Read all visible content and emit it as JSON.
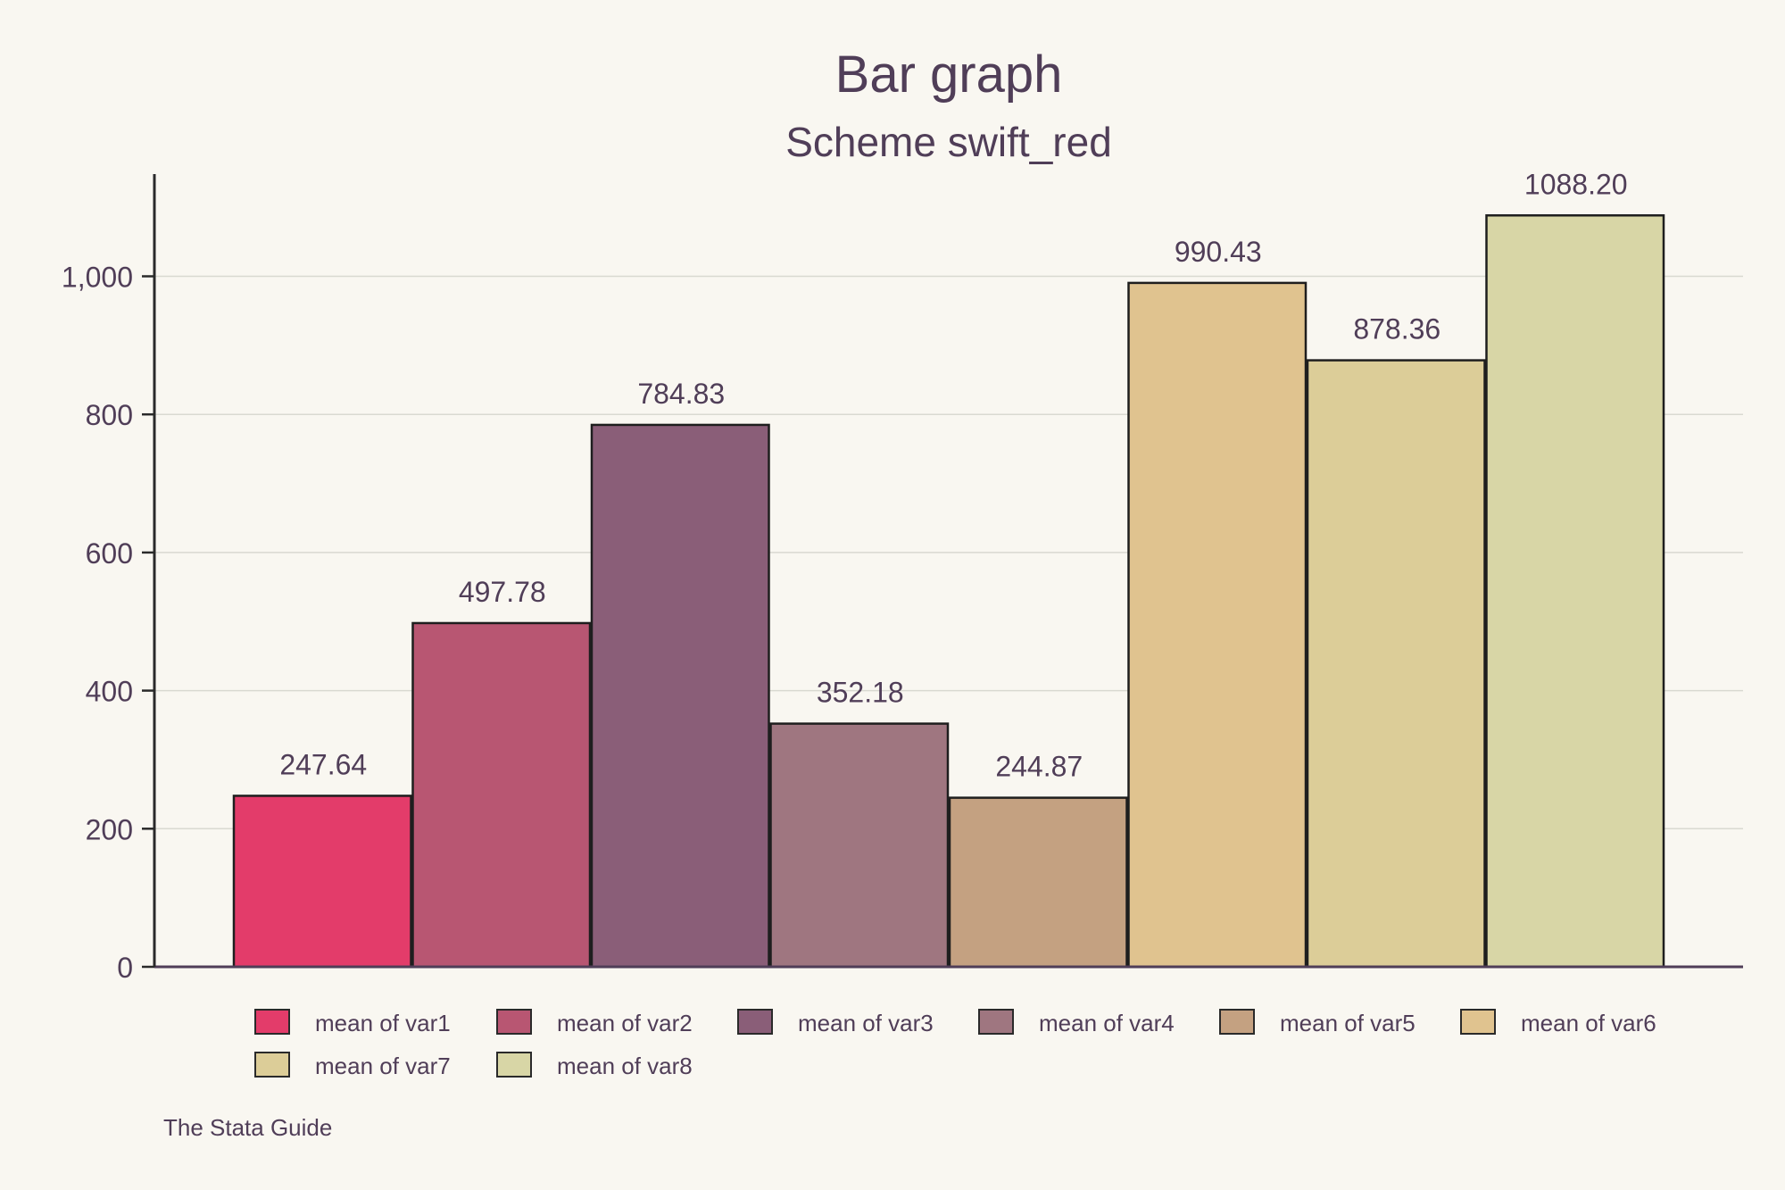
{
  "chart_data": {
    "type": "bar",
    "title": "Bar graph",
    "subtitle": "Scheme swift_red",
    "xlabel": "",
    "ylabel": "",
    "ylim": [
      0,
      1150
    ],
    "yticks": [
      0,
      200,
      400,
      600,
      800,
      1000
    ],
    "ytick_labels": [
      "0",
      "200",
      "400",
      "600",
      "800",
      "1,000"
    ],
    "grid": true,
    "legend_position": "bottom",
    "note": "The Stata Guide",
    "series": [
      {
        "name": "mean of var1",
        "value": 247.64,
        "label": "247.64",
        "color": "#e33c6a"
      },
      {
        "name": "mean of var2",
        "value": 497.78,
        "label": "497.78",
        "color": "#b85672"
      },
      {
        "name": "mean of var3",
        "value": 784.83,
        "label": "784.83",
        "color": "#8a5e78"
      },
      {
        "name": "mean of var4",
        "value": 352.18,
        "label": "352.18",
        "color": "#9f7680"
      },
      {
        "name": "mean of var5",
        "value": 244.87,
        "label": "244.87",
        "color": "#c4a181"
      },
      {
        "name": "mean of var6",
        "value": 990.43,
        "label": "990.43",
        "color": "#e0c38f"
      },
      {
        "name": "mean of var7",
        "value": 878.36,
        "label": "878.36",
        "color": "#dccd98"
      },
      {
        "name": "mean of var8",
        "value": 1088.2,
        "label": "1088.20",
        "color": "#d8d6a6"
      }
    ]
  }
}
